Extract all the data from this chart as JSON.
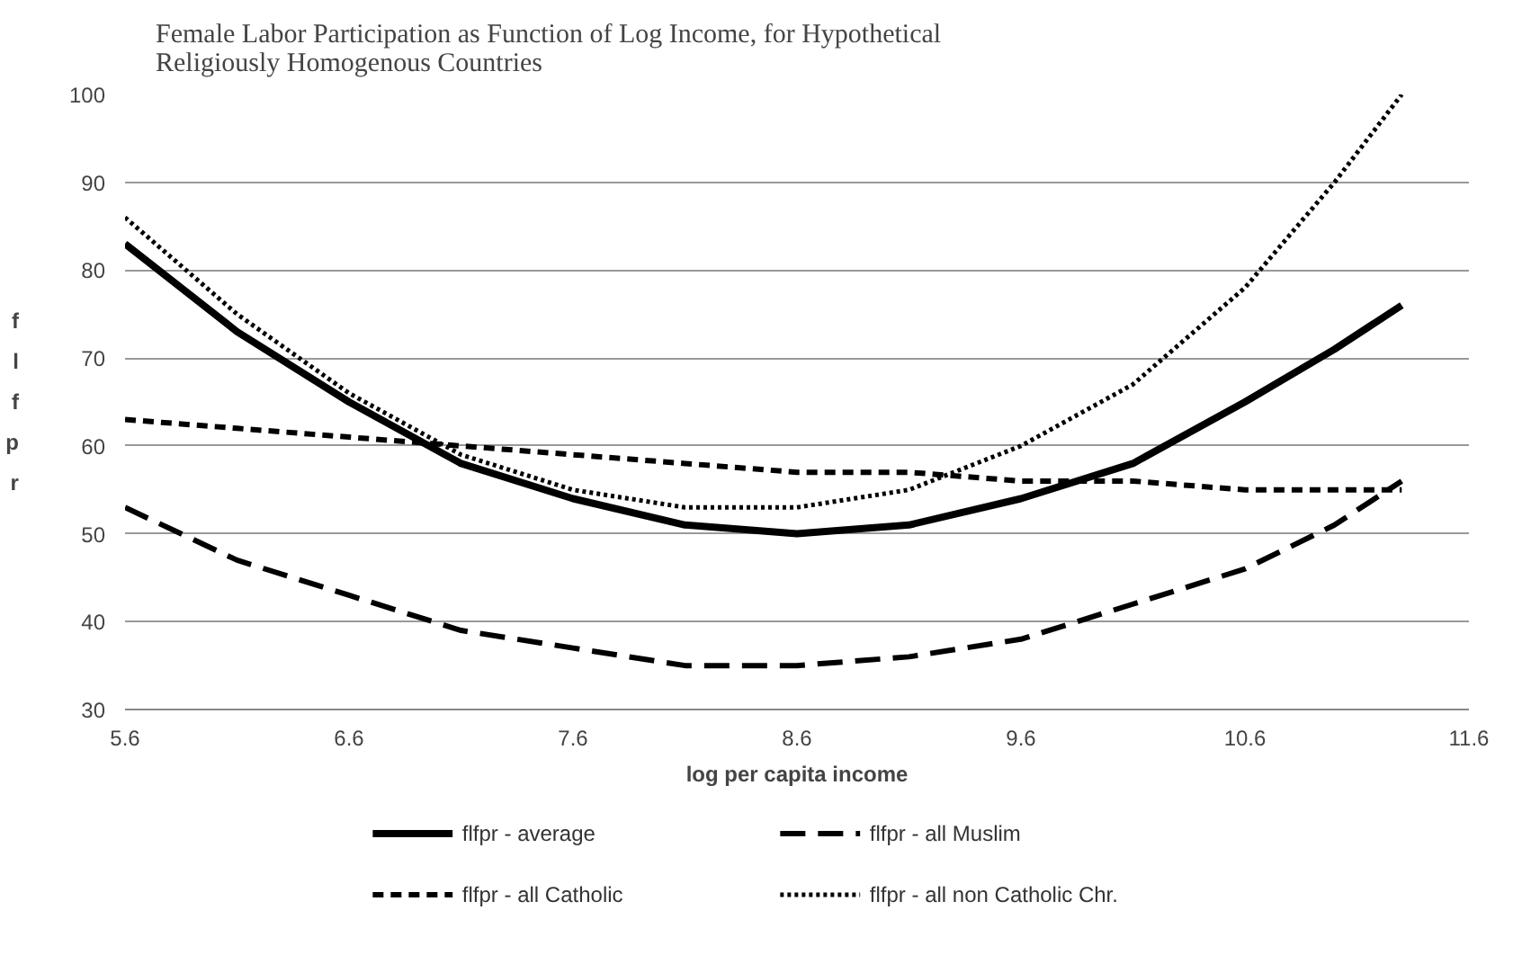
{
  "chart_data": {
    "type": "line",
    "title": "Female Labor Participation as Function of Log Income, for Hypothetical Religiously Homogenous Countries",
    "xlabel": "log per capita income",
    "ylabel": "flfpr",
    "x": [
      5.6,
      6.1,
      6.6,
      7.1,
      7.6,
      8.1,
      8.6,
      9.1,
      9.6,
      10.1,
      10.6,
      11.0,
      11.3
    ],
    "series": [
      {
        "name": "flfpr - average",
        "color": "#000000",
        "line_style": "solid",
        "values": [
          83,
          73,
          65,
          58,
          54,
          51,
          50,
          51,
          54,
          58,
          65,
          71,
          76
        ]
      },
      {
        "name": "flfpr - all Catholic",
        "color": "#000000",
        "line_style": "dashed",
        "values": [
          63,
          62,
          61,
          60,
          59,
          58,
          57,
          57,
          56,
          56,
          55,
          55,
          55
        ]
      },
      {
        "name": "flfpr - all Muslim",
        "color": "#000000",
        "line_style": "longdash",
        "values": [
          53,
          47,
          43,
          39,
          37,
          35,
          35,
          36,
          38,
          42,
          46,
          51,
          56
        ]
      },
      {
        "name": "flfpr - all non Catholic Chr.",
        "color": "#000000",
        "line_style": "dotted",
        "values": [
          86,
          75,
          66,
          59,
          55,
          53,
          53,
          55,
          60,
          67,
          78,
          90,
          100
        ]
      }
    ],
    "xlim": [
      5.6,
      11.6
    ],
    "xticks": [
      5.6,
      6.6,
      7.6,
      8.6,
      9.6,
      10.6,
      11.6
    ],
    "ylim": [
      30,
      100
    ],
    "yticks": [
      30,
      40,
      50,
      60,
      70,
      80,
      90,
      100
    ],
    "grid": "y",
    "legend": "bottom",
    "marker": "none"
  }
}
